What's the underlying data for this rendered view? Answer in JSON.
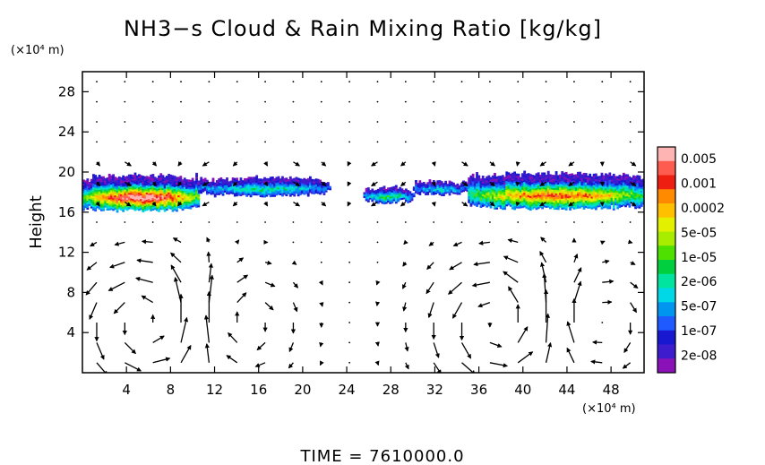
{
  "chart_data": {
    "type": "heatmap",
    "title": "NH3−s Cloud & Rain Mixing Ratio [kg/kg]",
    "ylabel": "Height",
    "y_unit": "(×10⁴ m)",
    "x_unit": "(×10⁴ m)",
    "footer": "TIME  =  7610000.0",
    "xlim": [
      0,
      51
    ],
    "ylim": [
      0,
      30
    ],
    "x_ticks": [
      4,
      8,
      12,
      16,
      20,
      24,
      28,
      32,
      36,
      40,
      44,
      48
    ],
    "y_ticks": [
      4,
      8,
      12,
      16,
      20,
      24,
      28
    ],
    "grid": false,
    "colorbar": {
      "labels": [
        "0.005",
        "0.001",
        "0.0002",
        "5e-05",
        "1e-05",
        "2e-06",
        "5e-07",
        "1e-07",
        "2e-08"
      ],
      "colors": [
        "#ffb4b4",
        "#ff5c50",
        "#ee1f10",
        "#ff8a00",
        "#ffc000",
        "#e3f000",
        "#a8ec00",
        "#4ee000",
        "#00d040",
        "#00e4a0",
        "#00d8e8",
        "#0096f0",
        "#1e5aff",
        "#1818d0",
        "#3c1ccc",
        "#8a10b8"
      ]
    },
    "cloud_bands": [
      {
        "x_start": 0.0,
        "x_end": 10.5,
        "y_bottom": 16.0,
        "y_top": 19.8,
        "peak": 4.2
      },
      {
        "x_start": 10.5,
        "x_end": 22.5,
        "y_bottom": 17.5,
        "y_top": 19.6,
        "peak": 1.5
      },
      {
        "x_start": 25.5,
        "x_end": 30.0,
        "y_bottom": 16.8,
        "y_top": 18.6,
        "peak": 1.8
      },
      {
        "x_start": 30.0,
        "x_end": 35.0,
        "y_bottom": 17.6,
        "y_top": 19.2,
        "peak": 1.3
      },
      {
        "x_start": 35.0,
        "x_end": 51.0,
        "y_bottom": 16.2,
        "y_top": 20.0,
        "peak": 3.4
      }
    ],
    "vector_field": {
      "description": "wind vectors",
      "circulation_cells": [
        {
          "x_center": 6.0,
          "y_center": 5.0,
          "radius": 4.5
        },
        {
          "x_center": 14.0,
          "y_center": 5.0,
          "radius": 3.5
        },
        {
          "x_center": 38.0,
          "y_center": 5.0,
          "radius": 4.5
        },
        {
          "x_center": 46.0,
          "y_center": 5.0,
          "radius": 3.5
        }
      ]
    }
  }
}
